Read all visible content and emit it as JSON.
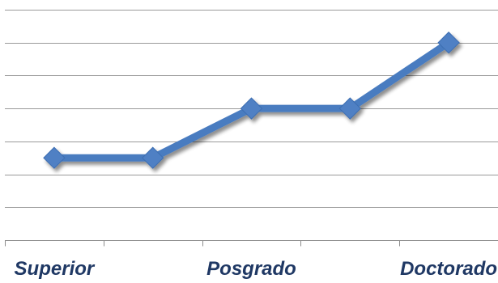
{
  "chart_data": {
    "type": "line",
    "categories": [
      "Superior",
      "",
      "Posgrado",
      "",
      "Doctorado"
    ],
    "series": [
      {
        "values": [
          2.5,
          2.5,
          4,
          4,
          6
        ]
      }
    ],
    "title": "",
    "xlabel": "",
    "ylabel": "",
    "ylim": [
      0,
      7
    ],
    "ytick_step": 1,
    "y_tick_labels_visible": false,
    "grid": true,
    "legend": "none",
    "marker": "diamond",
    "colors": {
      "series": "#4a7cc0",
      "marker_fill": "#4f80c4",
      "grid": "#9a9a9a",
      "axis": "#8c8c8c",
      "tick_label": "#1f3864"
    }
  }
}
